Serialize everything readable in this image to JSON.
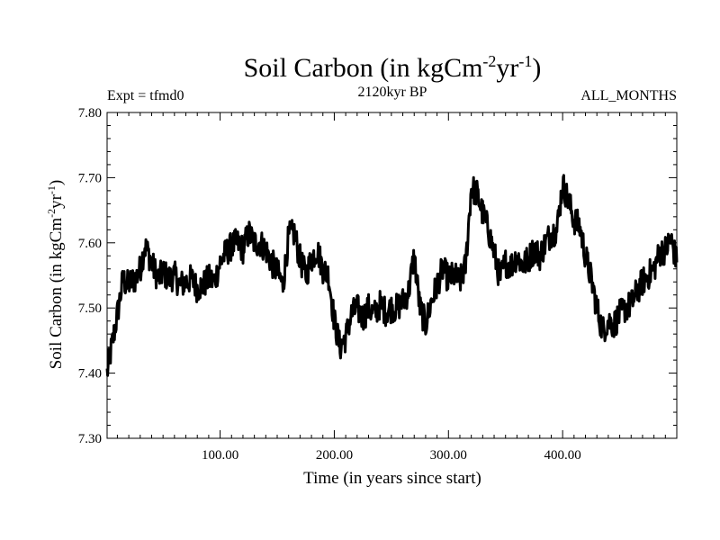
{
  "chart_data": {
    "type": "line",
    "title": {
      "main": "Soil Carbon (in kgCm",
      "sup1": "-2",
      "mid": "yr",
      "sup2": "-1",
      "end": ")"
    },
    "left_label": "Expt = tfmd0",
    "center_label": "2120kyr BP",
    "right_label": "ALL_MONTHS",
    "xlabel": "Time (in years since start)",
    "ylabel": {
      "main": "Soil Carbon (in kgCm",
      "sup1": "-2",
      "mid": "yr",
      "sup2": "-1",
      "end": ")"
    },
    "xlim": [
      1,
      500
    ],
    "ylim": [
      7.3,
      7.8
    ],
    "x_ticks": [
      {
        "value": 100,
        "label": "100.00"
      },
      {
        "value": 200,
        "label": "200.00"
      },
      {
        "value": 300,
        "label": "300.00"
      },
      {
        "value": 400,
        "label": "400.00"
      }
    ],
    "y_ticks": [
      {
        "value": 7.3,
        "label": "7.30"
      },
      {
        "value": 7.4,
        "label": "7.40"
      },
      {
        "value": 7.5,
        "label": "7.50"
      },
      {
        "value": 7.6,
        "label": "7.60"
      },
      {
        "value": 7.7,
        "label": "7.70"
      },
      {
        "value": 7.8,
        "label": "7.80"
      }
    ],
    "series": [
      {
        "name": "Soil Carbon",
        "x": [
          1,
          5,
          10,
          15,
          18,
          22,
          26,
          30,
          34,
          38,
          42,
          46,
          50,
          55,
          60,
          65,
          70,
          75,
          80,
          85,
          90,
          95,
          100,
          105,
          110,
          115,
          120,
          125,
          130,
          135,
          140,
          145,
          150,
          155,
          160,
          165,
          170,
          175,
          180,
          185,
          190,
          195,
          200,
          205,
          210,
          215,
          220,
          225,
          230,
          235,
          240,
          245,
          250,
          255,
          260,
          265,
          270,
          275,
          280,
          285,
          290,
          295,
          300,
          305,
          310,
          315,
          320,
          325,
          330,
          335,
          340,
          345,
          350,
          355,
          360,
          365,
          370,
          375,
          380,
          385,
          390,
          395,
          400,
          405,
          410,
          415,
          420,
          425,
          430,
          435,
          440,
          445,
          450,
          455,
          460,
          465,
          470,
          475,
          480,
          485,
          490,
          495,
          500
        ],
        "y": [
          7.4,
          7.44,
          7.49,
          7.545,
          7.535,
          7.54,
          7.545,
          7.56,
          7.595,
          7.58,
          7.56,
          7.545,
          7.555,
          7.545,
          7.55,
          7.535,
          7.54,
          7.545,
          7.53,
          7.535,
          7.545,
          7.54,
          7.57,
          7.585,
          7.595,
          7.6,
          7.59,
          7.615,
          7.6,
          7.6,
          7.59,
          7.57,
          7.555,
          7.535,
          7.61,
          7.615,
          7.575,
          7.55,
          7.575,
          7.59,
          7.56,
          7.55,
          7.48,
          7.44,
          7.455,
          7.49,
          7.5,
          7.485,
          7.5,
          7.49,
          7.505,
          7.495,
          7.5,
          7.5,
          7.51,
          7.525,
          7.58,
          7.5,
          7.475,
          7.51,
          7.535,
          7.56,
          7.545,
          7.55,
          7.54,
          7.565,
          7.685,
          7.675,
          7.645,
          7.62,
          7.585,
          7.545,
          7.57,
          7.565,
          7.58,
          7.565,
          7.575,
          7.59,
          7.58,
          7.6,
          7.615,
          7.62,
          7.69,
          7.665,
          7.635,
          7.625,
          7.58,
          7.545,
          7.5,
          7.465,
          7.48,
          7.475,
          7.49,
          7.5,
          7.505,
          7.525,
          7.54,
          7.55,
          7.56,
          7.585,
          7.59,
          7.605,
          7.57
        ]
      }
    ]
  }
}
